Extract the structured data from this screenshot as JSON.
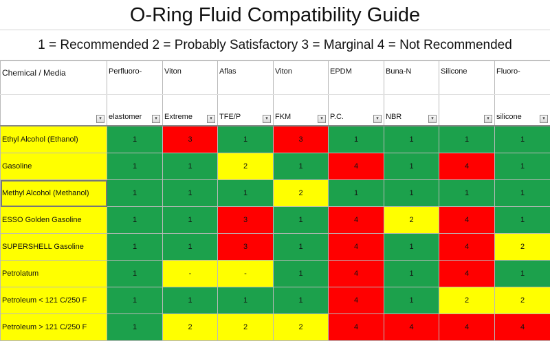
{
  "title": "O-Ring Fluid Compatibility Guide",
  "legend": "1 = Recommended  2 = Probably Satisfactory  3 = Marginal  4 = Not Recommended",
  "colors": {
    "recommended": "#1ca14c",
    "satisfactory": "#ffff00",
    "not_recommended": "#ff0000",
    "chemical_cell": "#ffff00"
  },
  "header": {
    "first_col": "Chemical / Media",
    "line1": [
      "Perfluoro-",
      "Viton",
      "Aflas",
      "Viton",
      "EPDM",
      "Buna-N",
      "Silicone",
      "Fluoro-"
    ],
    "line2": [
      "elastomer",
      "Extreme",
      "TFE/P",
      "FKM",
      "P.C.",
      "NBR",
      "",
      "silicone"
    ],
    "filter_icon": "▾"
  },
  "rows": [
    {
      "chemical": "Ethyl Alcohol (Ethanol)",
      "values": [
        "1",
        "3",
        "1",
        "3",
        "1",
        "1",
        "1",
        "1"
      ]
    },
    {
      "chemical": "Gasoline",
      "values": [
        "1",
        "1",
        "2",
        "1",
        "4",
        "1",
        "4",
        "1"
      ]
    },
    {
      "chemical": "Methyl Alcohol (Methanol)",
      "values": [
        "1",
        "1",
        "1",
        "2",
        "1",
        "1",
        "1",
        "1"
      ]
    },
    {
      "chemical": "ESSO Golden Gasoline",
      "values": [
        "1",
        "1",
        "3",
        "1",
        "4",
        "2",
        "4",
        "1"
      ]
    },
    {
      "chemical": "SUPERSHELL Gasoline",
      "values": [
        "1",
        "1",
        "3",
        "1",
        "4",
        "1",
        "4",
        "2"
      ]
    },
    {
      "chemical": "Petrolatum",
      "values": [
        "1",
        "-",
        "-",
        "1",
        "4",
        "1",
        "4",
        "1"
      ]
    },
    {
      "chemical": "Petroleum < 121 C/250 F",
      "values": [
        "1",
        "1",
        "1",
        "1",
        "4",
        "1",
        "2",
        "2"
      ]
    },
    {
      "chemical": "Petroleum > 121 C/250 F",
      "values": [
        "1",
        "2",
        "2",
        "2",
        "4",
        "4",
        "4",
        "4"
      ]
    }
  ]
}
